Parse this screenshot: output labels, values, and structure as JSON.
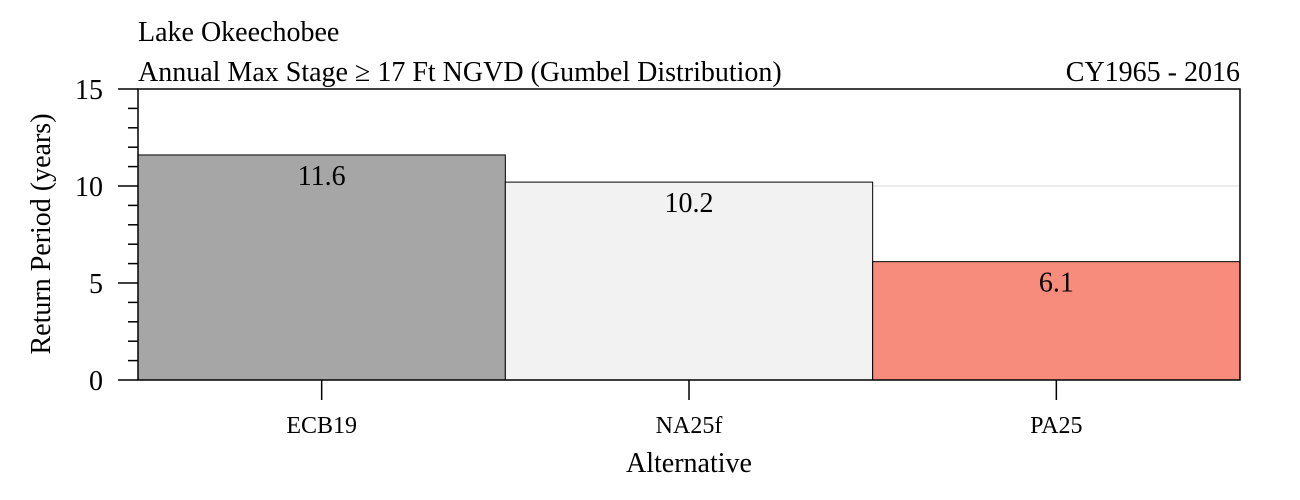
{
  "chart_data": {
    "type": "bar",
    "title": "Lake Okeechobee",
    "subtitle": "Annual Max Stage ≥ 17 Ft NGVD (Gumbel Distribution)",
    "period": "CY1965 - 2016",
    "xlabel": "Alternative",
    "ylabel": "Return Period (years)",
    "categories": [
      "ECB19",
      "NA25f",
      "PA25"
    ],
    "values": [
      11.6,
      10.2,
      6.1
    ],
    "value_labels": [
      "11.6",
      "10.2",
      "6.1"
    ],
    "colors": [
      "#a6a6a6",
      "#f2f2f2",
      "#f88c7c"
    ],
    "ylim": [
      0,
      15
    ],
    "yticks": [
      0,
      5,
      10,
      15
    ],
    "ytick_labels": [
      "0",
      "5",
      "10",
      "15"
    ],
    "minor_tick_step": 1,
    "grid": true,
    "legend": "none"
  }
}
